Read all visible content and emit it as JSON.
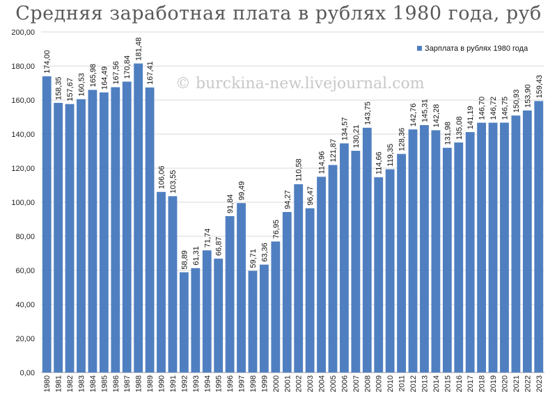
{
  "chart_data": {
    "type": "bar",
    "title": "Средняя заработная плата в рублях 1980 года, руб",
    "categories": [
      "1980",
      "1981",
      "1982",
      "1983",
      "1984",
      "1985",
      "1986",
      "1987",
      "1988",
      "1989",
      "1990",
      "1991",
      "1992",
      "1993",
      "1994",
      "1995",
      "1996",
      "1997",
      "1998",
      "1999",
      "2000",
      "2001",
      "2002",
      "2003",
      "2004",
      "2005",
      "2006",
      "2007",
      "2008",
      "2009",
      "2010",
      "2011",
      "2012",
      "2013",
      "2014",
      "2015",
      "2016",
      "2017",
      "2018",
      "2019",
      "2020",
      "2021",
      "2022",
      "2023"
    ],
    "series": [
      {
        "name": "Зарплата в рублях 1980 года",
        "values": [
          174.0,
          158.35,
          157.67,
          160.53,
          165.98,
          164.49,
          167.56,
          170.84,
          181.48,
          167.41,
          106.06,
          103.55,
          58.89,
          61.31,
          71.74,
          66.87,
          91.84,
          99.49,
          59.71,
          63.36,
          76.95,
          94.27,
          110.58,
          96.47,
          114.96,
          121.87,
          134.57,
          130.21,
          143.75,
          114.66,
          119.35,
          128.36,
          142.76,
          145.31,
          142.28,
          131.98,
          135.08,
          141.19,
          146.7,
          146.72,
          146.75,
          150.93,
          153.9,
          159.43
        ],
        "labels": [
          "174,00",
          "158,35",
          "157,67",
          "160,53",
          "165,98",
          "164,49",
          "167,56",
          "170,84",
          "181,48",
          "167,41",
          "106,06",
          "103,55",
          "58,89",
          "61,31",
          "71,74",
          "66,87",
          "91,84",
          "99,49",
          "59,71",
          "63,36",
          "76,95",
          "94,27",
          "110,58",
          "96,47",
          "114,96",
          "121,87",
          "134,57",
          "130,21",
          "143,75",
          "114,66",
          "119,35",
          "128,36",
          "142,76",
          "145,31",
          "142,28",
          "131,98",
          "135,08",
          "141,19",
          "146,70",
          "146,72",
          "146,75",
          "150,93",
          "153,90",
          "159,43"
        ]
      }
    ],
    "ylim": [
      0,
      200
    ],
    "yticks": [
      0,
      20,
      40,
      60,
      80,
      100,
      120,
      140,
      160,
      180,
      200
    ],
    "ytick_labels": [
      "0,00",
      "20,00",
      "40,00",
      "60,00",
      "80,00",
      "100,00",
      "120,00",
      "140,00",
      "160,00",
      "180,00",
      "200,00"
    ],
    "grid": true,
    "legend_position": "top-right",
    "bar_color": "#4f7fc0",
    "watermark": "© burckina-new.livejournal.com"
  }
}
